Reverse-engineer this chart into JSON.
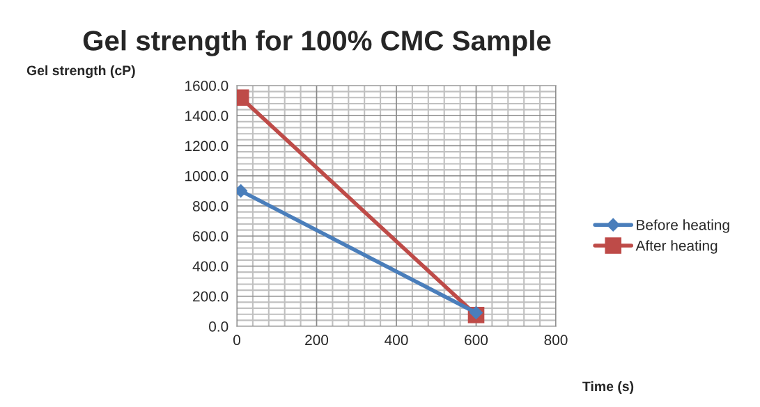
{
  "chart_data": {
    "type": "line",
    "title": "Gel strength for 100% CMC Sample",
    "xlabel": "Time (s)",
    "ylabel": "Gel strength (cP)",
    "x": [
      10,
      600
    ],
    "series": [
      {
        "name": "Before heating",
        "color": "#4a7ebb",
        "values": [
          900,
          90
        ],
        "marker": "diamond"
      },
      {
        "name": "After heating",
        "color": "#be4b48",
        "values": [
          1520,
          75
        ],
        "marker": "square"
      }
    ],
    "xlim": [
      0,
      800
    ],
    "xticks": [
      0,
      200,
      400,
      600,
      800
    ],
    "ylim": [
      0,
      1600
    ],
    "yticks": [
      {
        "value": 0,
        "label": "0.0"
      },
      {
        "value": 200,
        "label": "200.0"
      },
      {
        "value": 400,
        "label": "400.0"
      },
      {
        "value": 600,
        "label": "600.0"
      },
      {
        "value": 800,
        "label": "800.0"
      },
      {
        "value": 1000,
        "label": "1000.0"
      },
      {
        "value": 1200,
        "label": "1200.0"
      },
      {
        "value": 1400,
        "label": "1400.0"
      },
      {
        "value": 1600,
        "label": "1600.0"
      }
    ],
    "grid": true,
    "legend": "right",
    "line_style": "solid"
  }
}
